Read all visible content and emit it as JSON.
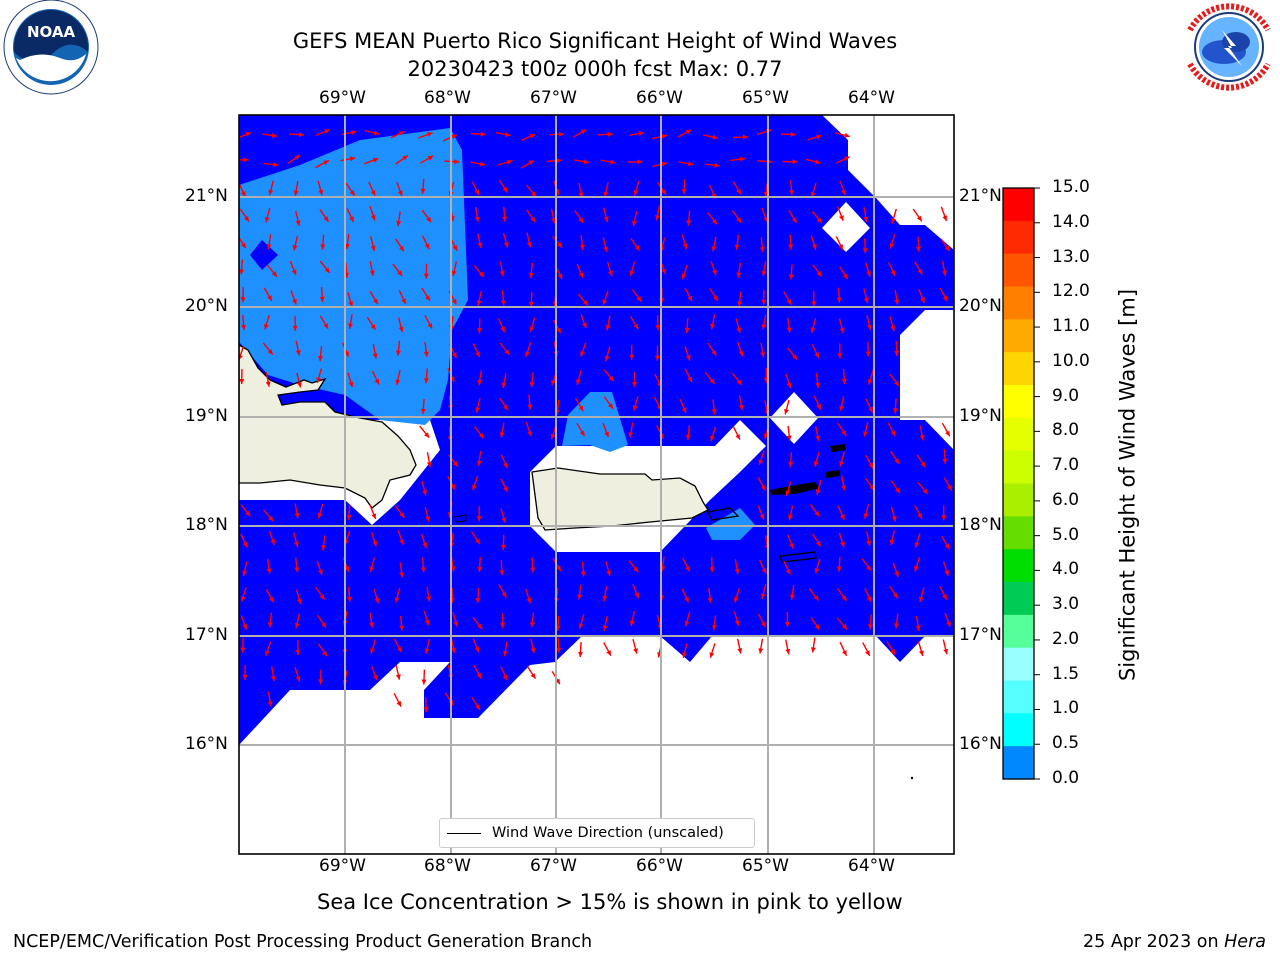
{
  "title": {
    "line1": "GEFS MEAN Puerto Rico Significant Height of Wind Waves",
    "line2": "20230423 t00z 000h fcst   Max: 0.77"
  },
  "logos": {
    "noaa_text": "NOAA",
    "noaa_ring": "NATIONAL OCEANIC AND ATMOSPHERIC ADMINISTRATION · U.S. DEPARTMENT OF COMMERCE",
    "nws_ring": "NATIONAL WEATHER SERVICE"
  },
  "map": {
    "lon_labels": [
      "69°W",
      "68°W",
      "67°W",
      "66°W",
      "65°W",
      "64°W"
    ],
    "lat_labels": [
      "21°N",
      "20°N",
      "19°N",
      "18°N",
      "17°N",
      "16°N"
    ],
    "colors": {
      "ocean_low": "#0000ff",
      "ocean_mid": "#1e90ff",
      "land": "#efefdf",
      "arrow": "#ff0000",
      "grid": "#b0b0b0"
    }
  },
  "legend": {
    "label": "Wind Wave Direction (unscaled)"
  },
  "colorbar": {
    "label": "Significant Height of Wind Waves [m]",
    "ticks": [
      "15.0",
      "14.0",
      "13.0",
      "12.0",
      "11.0",
      "10.0",
      "9.0",
      "8.0",
      "7.0",
      "6.0",
      "5.0",
      "4.0",
      "3.0",
      "2.0",
      "1.5",
      "1.0",
      "0.5",
      "0.0"
    ],
    "colors": [
      "#ff0000",
      "#ff2a00",
      "#ff5500",
      "#ff8000",
      "#ffaa00",
      "#ffd500",
      "#ffff00",
      "#e6ff00",
      "#ccff00",
      "#aaee00",
      "#66dd00",
      "#00dd00",
      "#00cc55",
      "#55ff99",
      "#99ffff",
      "#55ffff",
      "#00ffff",
      "#0088ff",
      "#0000ff"
    ]
  },
  "notes": {
    "sea_ice": "Sea Ice Concentration > 15% is shown in pink to yellow"
  },
  "footer": {
    "left": "NCEP/EMC/Verification Post Processing Product Generation Branch",
    "right_date": "25 Apr 2023 on ",
    "right_host": "Hera"
  }
}
